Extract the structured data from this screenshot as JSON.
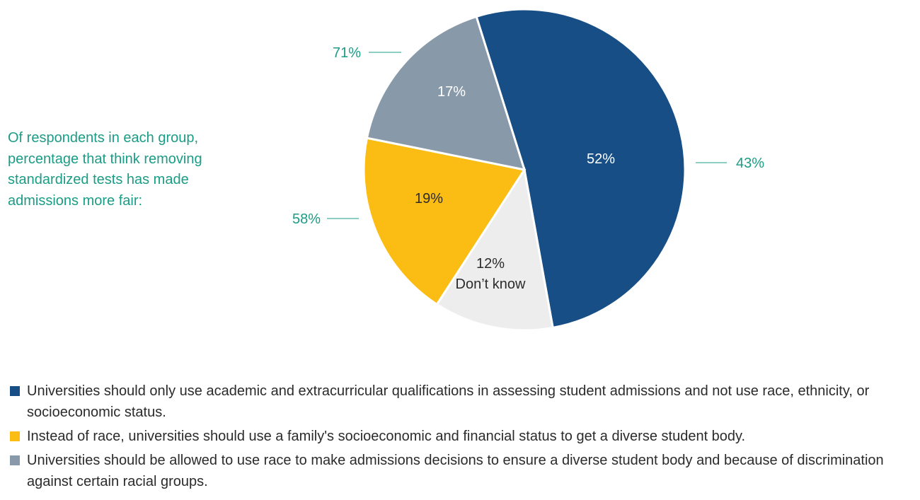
{
  "side_note": "Of respondents in each group, percentage that think removing standardized tests has made admissions more fair:",
  "chart_data": {
    "type": "pie",
    "title": "",
    "slices": [
      {
        "label": "52%",
        "category": "Universities should only use academic and extracurricular qualifications in assessing student admissions and not use race, ethnicity, or socioeconomic status.",
        "value": 52,
        "color": "#174e85",
        "callout": "43%"
      },
      {
        "label": "12%",
        "sublabel": "Don’t know",
        "category": "Don’t know",
        "value": 12,
        "color": "#ededee",
        "callout": ""
      },
      {
        "label": "19%",
        "category": "Instead of race, universities should use a family's socioeconomic and financial status to get a diverse student body.",
        "value": 19,
        "color": "#fbbd14",
        "callout": "58%"
      },
      {
        "label": "17%",
        "category": "Universities should be allowed to use race to make admissions decisions to ensure a diverse student body and because of discrimination against certain racial groups.",
        "value": 17,
        "color": "#8899aa",
        "callout": "71%"
      }
    ],
    "legend": [
      {
        "text": "Universities should only use academic and extracurricular qualifications in assessing student admissions and not use race, ethnicity, or socioeconomic status.",
        "color": "#174e85"
      },
      {
        "text": "Instead of race, universities should use a family's socioeconomic and financial status to get a diverse student body.",
        "color": "#fbbd14"
      },
      {
        "text": "Universities should be allowed to use race to make admissions decisions to ensure a diverse student body and because of discrimination against certain racial groups.",
        "color": "#8899aa"
      }
    ],
    "legend_placement": "bottom",
    "callout_color": "#1a9c85"
  }
}
